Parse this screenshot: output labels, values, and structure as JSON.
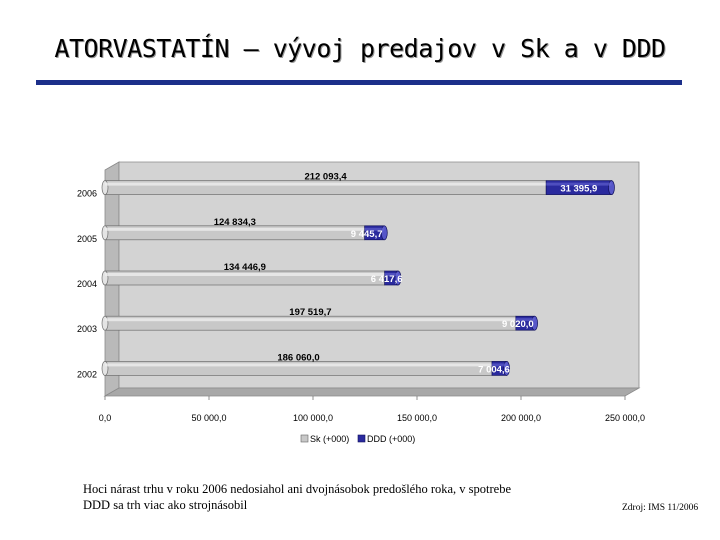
{
  "slide": {
    "title": "ATORVASTATÍN – vývoj predajov v Sk a v DDD",
    "note": "Hoci nárast trhu v roku 2006 nedosiahol ani dvojnásobok predošlého roka, v spotrebe DDD sa trh viac ako strojnásobil",
    "source": "Zdroj: IMS 11/2006"
  },
  "chart_data": {
    "type": "bar",
    "orientation": "horizontal",
    "stacked": true,
    "categories": [
      "2006",
      "2005",
      "2004",
      "2003",
      "2002"
    ],
    "series": [
      {
        "name": "Sk (+000)",
        "values": [
          212093.4,
          124834.3,
          134446.9,
          197519.7,
          186060.0
        ],
        "labels": [
          "212 093,4",
          "124 834,3",
          "134 446,9",
          "197 519,7",
          "186 060,0"
        ],
        "color": "#c8c8c8"
      },
      {
        "name": "DDD (+000)",
        "values": [
          31395.9,
          9445.7,
          6417.6,
          9020.0,
          7004.6
        ],
        "labels": [
          "31 395,9",
          "9 445,7",
          "6 417,6",
          "9 020,0",
          "7 004,6"
        ],
        "color": "#2a2a9e"
      }
    ],
    "xlim": [
      0,
      250000
    ],
    "x_ticks": [
      0,
      50000,
      100000,
      150000,
      200000,
      250000
    ],
    "x_tick_labels": [
      "0,0",
      "50 000,0",
      "100 000,0",
      "150 000,0",
      "200 000,0",
      "250 000,0"
    ],
    "legend": "bottom",
    "grid": false
  }
}
